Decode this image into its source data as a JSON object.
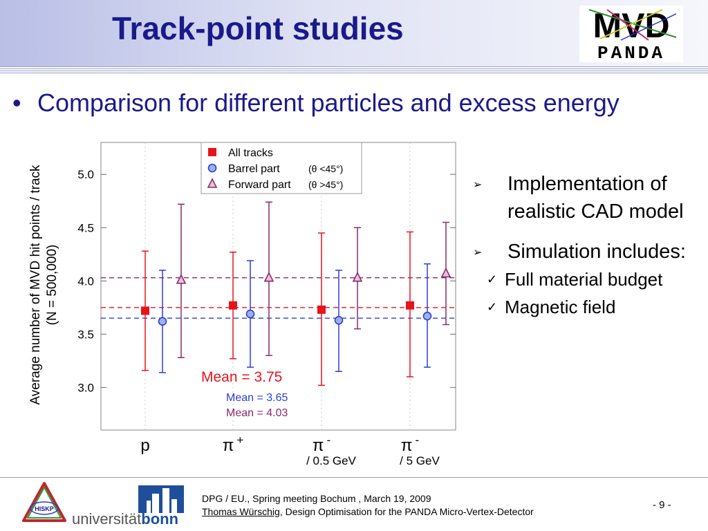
{
  "header": {
    "title": "Track-point studies",
    "logo_text_top": "MVD",
    "logo_text_bottom": "PANDA"
  },
  "bullet": {
    "symbol": "•",
    "text": "Comparison for different particles and excess energy"
  },
  "chart_data": {
    "type": "scatter",
    "ylabel_line1": "Average number of MVD hit points / track",
    "ylabel_line2": "(N = 500,000)",
    "ylim": [
      2.6,
      5.3
    ],
    "yticks": [
      "3.0",
      "3.5",
      "4.0",
      "4.5",
      "5.0"
    ],
    "ytick_values": [
      3.0,
      3.5,
      4.0,
      4.5,
      5.0
    ],
    "categories": [
      {
        "label": "p",
        "sup": "",
        "sub": ""
      },
      {
        "label": "π",
        "sup": "+",
        "sub": ""
      },
      {
        "label": "π",
        "sup": "-",
        "sub": "/ 0.5 GeV"
      },
      {
        "label": "π",
        "sup": "-",
        "sub": "/ 5 GeV"
      }
    ],
    "series": [
      {
        "name": "All tracks",
        "condition": "",
        "marker": "square",
        "color": "#e8141c",
        "mean_line": 3.75,
        "values": [
          3.72,
          3.77,
          3.73,
          3.77
        ],
        "err_low": [
          3.16,
          3.27,
          3.02,
          3.1
        ],
        "err_high": [
          4.28,
          4.27,
          4.45,
          4.46
        ]
      },
      {
        "name": "Barrel part",
        "condition": "(θ <45°)",
        "marker": "circle",
        "color": "#2a3ed8",
        "mean_line": 3.65,
        "values": [
          3.62,
          3.69,
          3.63,
          3.67
        ],
        "err_low": [
          3.14,
          3.19,
          3.15,
          3.19
        ],
        "err_high": [
          4.1,
          4.19,
          4.1,
          4.16
        ]
      },
      {
        "name": "Forward part",
        "condition": "(θ >45°)",
        "marker": "triangle",
        "color": "#8a2a6a",
        "mean_line": 4.03,
        "values": [
          4.01,
          4.03,
          4.03,
          4.07
        ],
        "err_low": [
          3.28,
          3.3,
          3.55,
          3.59
        ],
        "err_high": [
          4.72,
          4.74,
          4.5,
          4.55
        ]
      }
    ],
    "annotations": [
      {
        "text": "Mean = 3.75",
        "color": "#e8141c"
      },
      {
        "text": "Mean = 3.65",
        "color": "#2a3ed8"
      },
      {
        "text": "Mean = 4.03",
        "color": "#8a2a6a"
      }
    ],
    "grid": "vertical-dashed",
    "legend": "top-center"
  },
  "right_panel": {
    "arrow_symbol": "➢",
    "check_symbol": "✓",
    "item1": "Implementation of realistic CAD model",
    "item2": "Simulation includes:",
    "subitems": [
      "Full material budget",
      "Magnetic field"
    ]
  },
  "footer": {
    "line1": "DPG / EU., Spring meeting Bochum , March 19, 2009",
    "author": "Thomas Würschig,",
    "line2_rest": " Design Optimisation for the PANDA Micro-Vertex-Detector",
    "page": "- 9 -",
    "hiskp_label": "HISKP",
    "bonn_text_a": "universität",
    "bonn_text_b": "bonn"
  }
}
